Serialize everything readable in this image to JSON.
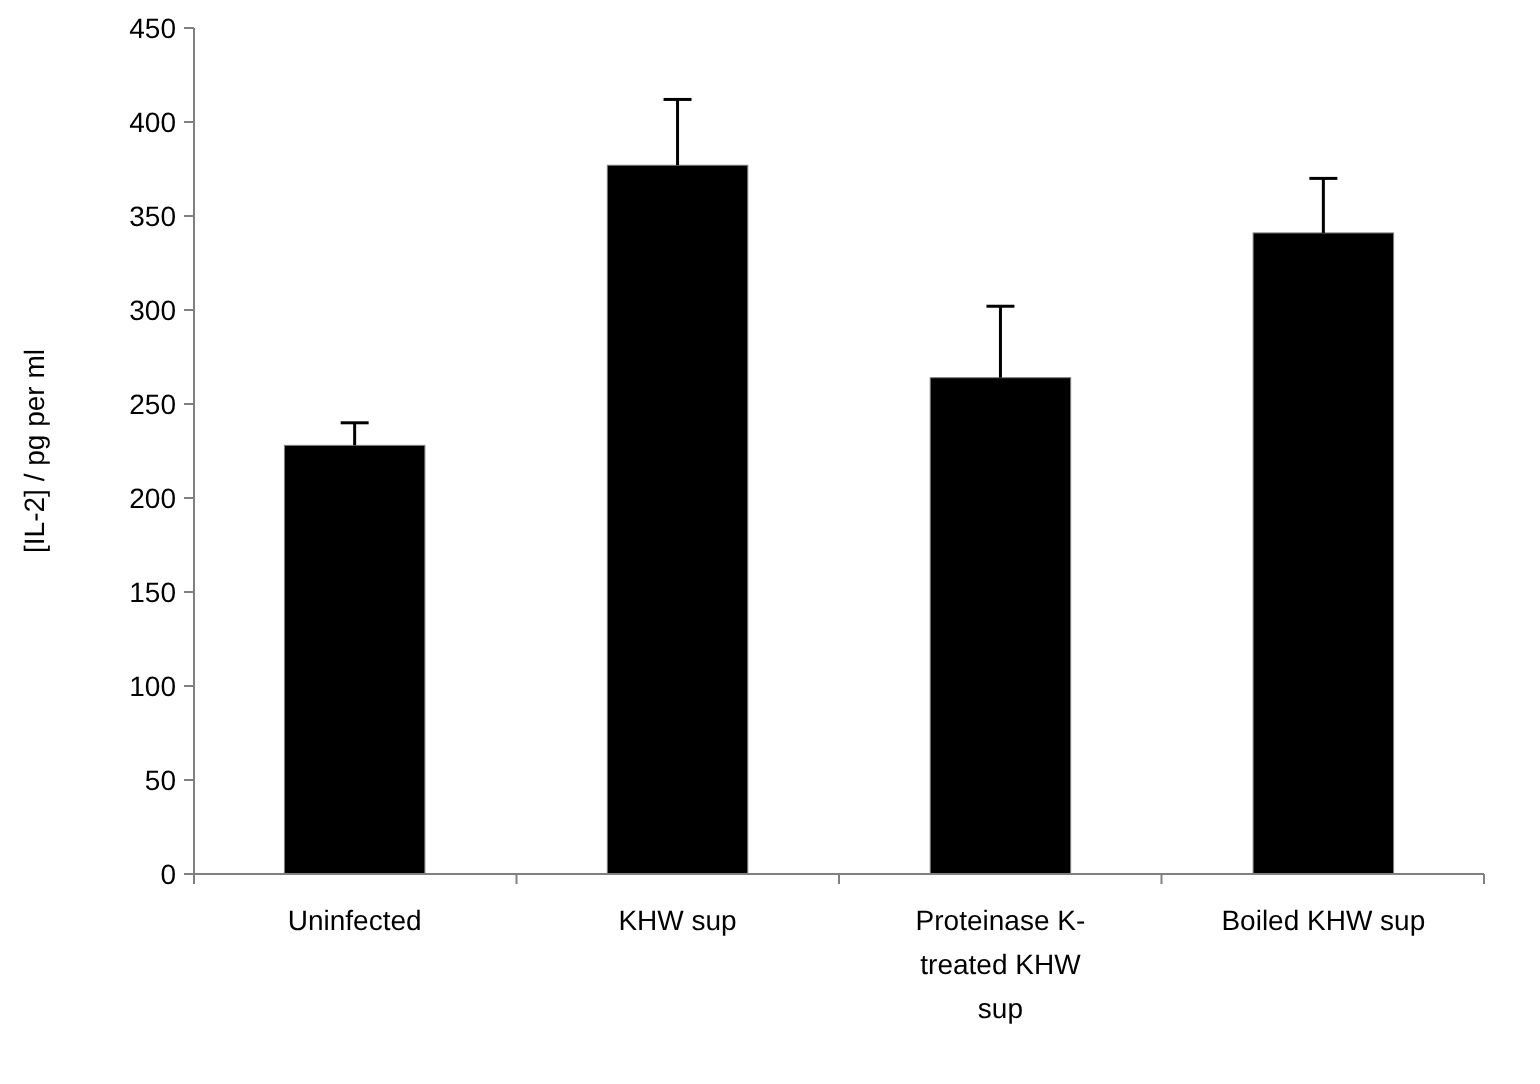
{
  "chart_data": {
    "type": "bar",
    "ylabel": "[IL-2] / pg per ml",
    "categories": [
      "Uninfected",
      "KHW sup",
      "Proteinase K-treated KHW sup",
      "Boiled KHW sup"
    ],
    "values": [
      228,
      377,
      264,
      341
    ],
    "errors": [
      [
        228,
        240
      ],
      [
        377,
        412
      ],
      [
        264,
        302
      ],
      [
        341,
        370
      ]
    ],
    "color": "#000000",
    "ylim": [
      0,
      450
    ],
    "yticks": [
      0,
      50,
      100,
      150,
      200,
      250,
      300,
      350,
      400,
      450
    ],
    "grid": false
  }
}
